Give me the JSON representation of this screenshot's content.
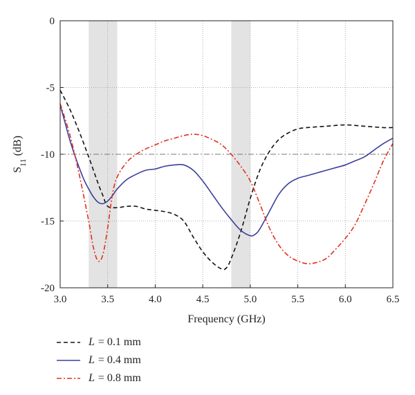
{
  "chart_data": {
    "type": "line",
    "xlabel": "Frequency (GHz)",
    "ylabel_main": "S",
    "ylabel_sub": "11",
    "ylabel_unit": " (dB)",
    "xlim": [
      3.0,
      6.5
    ],
    "ylim": [
      -20,
      0
    ],
    "xticks": [
      "3.0",
      "3.5",
      "4.0",
      "4.5",
      "5.0",
      "5.5",
      "6.0",
      "6.5"
    ],
    "yticks": [
      "0",
      "-5",
      "-10",
      "-15",
      "-20"
    ],
    "xtick_values": [
      3.0,
      3.5,
      4.0,
      4.5,
      5.0,
      5.5,
      6.0,
      6.5
    ],
    "ytick_values": [
      0,
      -5,
      -10,
      -15,
      -20
    ],
    "grid": true,
    "reference_line": -10,
    "shaded_bands": [
      [
        3.3,
        3.6
      ],
      [
        4.8,
        5.0
      ]
    ],
    "legend_position": "bottom-left",
    "series": [
      {
        "name": "L = 0.1 mm",
        "legend_var": "L",
        "legend_rest": "= 0.1 mm",
        "style": "dashed",
        "color": "#111111",
        "x": [
          3.0,
          3.1,
          3.2,
          3.3,
          3.4,
          3.45,
          3.5,
          3.6,
          3.7,
          3.8,
          3.9,
          4.0,
          4.1,
          4.2,
          4.3,
          4.4,
          4.5,
          4.6,
          4.7,
          4.75,
          4.8,
          4.9,
          5.0,
          5.1,
          5.2,
          5.3,
          5.4,
          5.5,
          5.6,
          5.8,
          6.0,
          6.2,
          6.4,
          6.5
        ],
        "y": [
          -5.2,
          -6.6,
          -8.3,
          -10.2,
          -12.2,
          -13.1,
          -13.9,
          -14.0,
          -13.9,
          -13.9,
          -14.1,
          -14.2,
          -14.3,
          -14.5,
          -15.0,
          -16.2,
          -17.3,
          -18.1,
          -18.6,
          -18.5,
          -17.8,
          -15.8,
          -13.3,
          -11.2,
          -9.8,
          -8.9,
          -8.4,
          -8.1,
          -8.0,
          -7.9,
          -7.8,
          -7.9,
          -8.0,
          -8.0
        ]
      },
      {
        "name": "L = 0.4 mm",
        "legend_var": "L",
        "legend_rest": "= 0.4 mm",
        "style": "solid",
        "color": "#3a3f9a",
        "x": [
          3.0,
          3.05,
          3.1,
          3.15,
          3.2,
          3.25,
          3.3,
          3.35,
          3.4,
          3.45,
          3.5,
          3.55,
          3.6,
          3.7,
          3.8,
          3.9,
          4.0,
          4.1,
          4.2,
          4.3,
          4.4,
          4.5,
          4.6,
          4.7,
          4.8,
          4.9,
          5.0,
          5.05,
          5.1,
          5.2,
          5.3,
          5.4,
          5.5,
          5.6,
          5.7,
          5.8,
          5.9,
          6.0,
          6.1,
          6.2,
          6.3,
          6.4,
          6.5
        ],
        "y": [
          -6.3,
          -7.6,
          -8.9,
          -10.0,
          -11.0,
          -11.9,
          -12.6,
          -13.2,
          -13.6,
          -13.7,
          -13.5,
          -13.1,
          -12.6,
          -11.9,
          -11.5,
          -11.2,
          -11.1,
          -10.9,
          -10.8,
          -10.8,
          -11.2,
          -12.0,
          -13.0,
          -14.0,
          -14.9,
          -15.7,
          -16.1,
          -16.0,
          -15.6,
          -14.3,
          -13.0,
          -12.2,
          -11.8,
          -11.6,
          -11.4,
          -11.2,
          -11.0,
          -10.8,
          -10.5,
          -10.2,
          -9.7,
          -9.2,
          -8.8
        ]
      },
      {
        "name": "L = 0.8 mm",
        "legend_var": "L",
        "legend_rest": "= 0.8 mm",
        "style": "dash-dot",
        "color": "#e0301e",
        "x": [
          3.0,
          3.1,
          3.2,
          3.3,
          3.35,
          3.4,
          3.45,
          3.5,
          3.55,
          3.6,
          3.7,
          3.8,
          3.9,
          4.0,
          4.1,
          4.2,
          4.3,
          4.4,
          4.5,
          4.6,
          4.7,
          4.8,
          4.9,
          5.0,
          5.1,
          5.2,
          5.3,
          5.4,
          5.5,
          5.6,
          5.7,
          5.8,
          5.9,
          6.0,
          6.1,
          6.2,
          6.3,
          6.4,
          6.5
        ],
        "y": [
          -6.2,
          -8.5,
          -11.5,
          -15.0,
          -17.0,
          -18.0,
          -17.5,
          -15.5,
          -13.0,
          -11.7,
          -10.6,
          -10.0,
          -9.6,
          -9.3,
          -9.0,
          -8.8,
          -8.6,
          -8.5,
          -8.6,
          -8.9,
          -9.3,
          -10.0,
          -10.9,
          -12.0,
          -13.7,
          -15.5,
          -16.8,
          -17.6,
          -18.0,
          -18.2,
          -18.1,
          -17.8,
          -17.1,
          -16.3,
          -15.3,
          -13.8,
          -12.2,
          -10.5,
          -9.2
        ]
      }
    ]
  }
}
